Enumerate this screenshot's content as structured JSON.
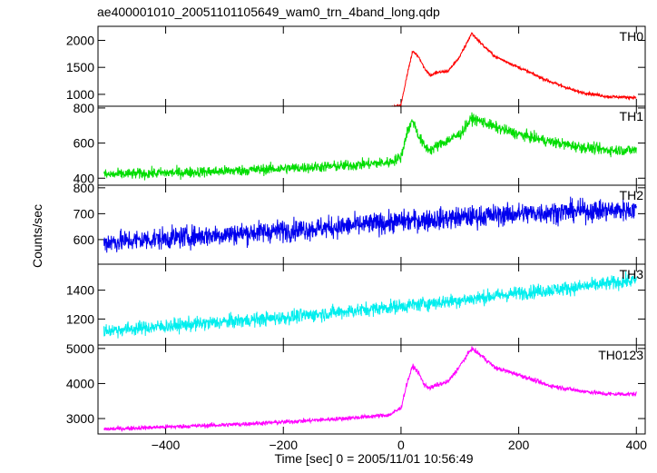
{
  "title": "ae400001010_20051101105649_wam0_trn_4band_long.qdp",
  "xlabel": "Time [sec] 0 = 2005/11/01 10:56:49",
  "ylabel": "Counts/sec",
  "chart_data": {
    "type": "line",
    "title": "ae400001010_20051101105649_wam0_trn_4band_long.qdp",
    "xlabel": "Time [sec] 0 = 2005/11/01 10:56:49",
    "ylabel": "Counts/sec",
    "xlim": [
      -515,
      415
    ],
    "x_ticks": [
      -400,
      -200,
      0,
      200,
      400
    ],
    "grid": false,
    "legend": "none",
    "panels": [
      {
        "name": "TH0",
        "color": "#ff0000",
        "ylim": [
          780,
          2260
        ],
        "y_ticks": [
          1000,
          1500,
          2000
        ],
        "x": [
          -500,
          -400,
          -300,
          -200,
          -100,
          -20,
          0,
          10,
          20,
          30,
          40,
          50,
          60,
          80,
          100,
          120,
          140,
          160,
          200,
          250,
          300,
          350,
          400
        ],
        "y": [
          560,
          590,
          610,
          640,
          690,
          740,
          800,
          1350,
          1800,
          1700,
          1480,
          1350,
          1400,
          1430,
          1700,
          2130,
          1900,
          1700,
          1500,
          1250,
          1050,
          960,
          940
        ],
        "noise": 20
      },
      {
        "name": "TH1",
        "color": "#00dd00",
        "ylim": [
          360,
          810
        ],
        "y_ticks": [
          400,
          600,
          800
        ],
        "x": [
          -500,
          -400,
          -300,
          -200,
          -100,
          -20,
          0,
          10,
          20,
          30,
          40,
          50,
          70,
          100,
          120,
          140,
          160,
          200,
          250,
          300,
          350,
          400
        ],
        "y": [
          420,
          430,
          440,
          455,
          470,
          490,
          520,
          660,
          730,
          640,
          580,
          560,
          600,
          650,
          740,
          720,
          690,
          650,
          610,
          580,
          560,
          560
        ],
        "noise": 22
      },
      {
        "name": "TH2",
        "color": "#0000ee",
        "ylim": [
          505,
          810
        ],
        "y_ticks": [
          600,
          700,
          800
        ],
        "x": [
          -500,
          -400,
          -300,
          -200,
          -100,
          0,
          100,
          200,
          300,
          400
        ],
        "y": [
          590,
          605,
          620,
          635,
          650,
          670,
          685,
          700,
          710,
          715
        ],
        "noise": 30
      },
      {
        "name": "TH3",
        "color": "#00eeee",
        "ylim": [
          1020,
          1580
        ],
        "y_ticks": [
          1200,
          1400
        ],
        "x": [
          -500,
          -400,
          -300,
          -200,
          -100,
          0,
          100,
          200,
          300,
          400
        ],
        "y": [
          1120,
          1150,
          1180,
          1210,
          1250,
          1290,
          1330,
          1380,
          1420,
          1470
        ],
        "noise": 35
      },
      {
        "name": "TH0123",
        "color": "#ff00ff",
        "ylim": [
          2560,
          5100
        ],
        "y_ticks": [
          3000,
          4000,
          5000
        ],
        "x": [
          -500,
          -400,
          -300,
          -200,
          -100,
          -20,
          0,
          10,
          20,
          30,
          40,
          50,
          60,
          80,
          100,
          120,
          140,
          160,
          200,
          250,
          300,
          350,
          400
        ],
        "y": [
          2700,
          2760,
          2820,
          2900,
          3000,
          3100,
          3300,
          4000,
          4500,
          4300,
          3950,
          3870,
          3950,
          4050,
          4500,
          5000,
          4750,
          4450,
          4250,
          3950,
          3800,
          3700,
          3700
        ],
        "noise": 45
      }
    ]
  }
}
